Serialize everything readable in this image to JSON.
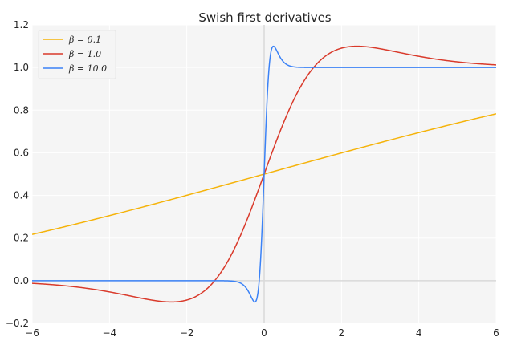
{
  "chart_data": {
    "type": "line",
    "title": "Swish first derivatives",
    "xlabel": "",
    "ylabel": "",
    "xlim": [
      -6,
      6
    ],
    "ylim": [
      -0.2,
      1.2
    ],
    "x_ticks": [
      "−6",
      "−4",
      "−2",
      "0",
      "2",
      "4",
      "6"
    ],
    "x_tick_values": [
      -6,
      -4,
      -2,
      0,
      2,
      4,
      6
    ],
    "y_ticks": [
      "−0.2",
      "0.0",
      "0.2",
      "0.4",
      "0.6",
      "0.8",
      "1.0",
      "1.2"
    ],
    "y_tick_values": [
      -0.2,
      0.0,
      0.2,
      0.4,
      0.6,
      0.8,
      1.0,
      1.2
    ],
    "grid": true,
    "legend_position": "top-left",
    "series": [
      {
        "name": "β = 0.1",
        "beta": 0.1,
        "color": "#F5B30A"
      },
      {
        "name": "β = 1.0",
        "beta": 1.0,
        "color": "#D93A2B"
      },
      {
        "name": "β = 10.0",
        "beta": 10.0,
        "color": "#3B82F6"
      }
    ]
  }
}
